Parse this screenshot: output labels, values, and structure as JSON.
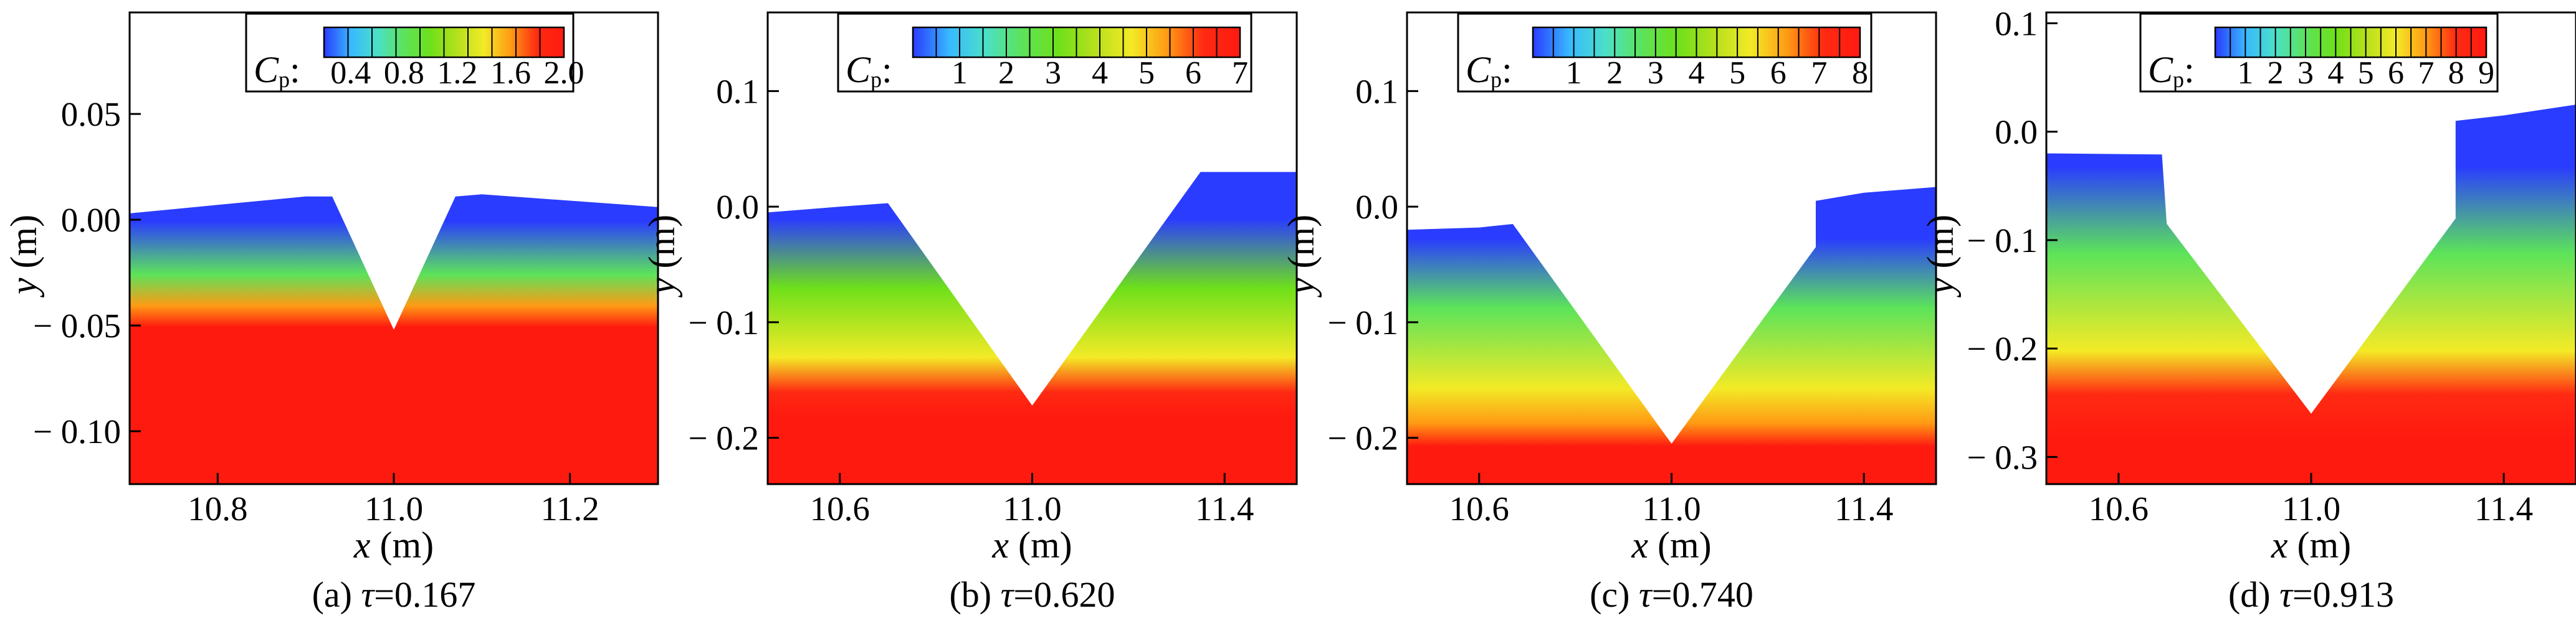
{
  "chart_data": [
    {
      "type": "heatmap",
      "caption": "(a) τ=0.167",
      "caption_prefix": "(a) ",
      "caption_symbol": "τ",
      "caption_value": "=0.167",
      "xlabel_var": "x",
      "xlabel_unit": " (m)",
      "ylabel_var": "y",
      "ylabel_unit": " (m)",
      "xlim": [
        10.7,
        11.3
      ],
      "ylim": [
        -0.125,
        0.098
      ],
      "xticks": [
        10.8,
        11.0,
        11.2
      ],
      "xtick_labels": [
        "10.8",
        "11.0",
        "11.2"
      ],
      "yticks": [
        0.05,
        0.0,
        -0.05,
        -0.1
      ],
      "ytick_labels": [
        "0.05",
        "0.00",
        "− 0.05",
        "− 0.10"
      ],
      "colorbar_title": "C",
      "colorbar_subscript": "p",
      "colorbar_range": [
        0.2,
        2.0
      ],
      "colorbar_ticks": [
        0.4,
        0.8,
        1.2,
        1.6,
        2.0
      ],
      "colorbar_tick_labels": [
        "0.4",
        "0.8",
        "1.2",
        "1.6",
        "2.0"
      ],
      "free_surface": [
        [
          10.7,
          0.003
        ],
        [
          10.8,
          0.007
        ],
        [
          10.9,
          0.011
        ],
        [
          10.93,
          0.011
        ],
        [
          11.0,
          -0.052
        ],
        [
          11.07,
          0.011
        ],
        [
          11.1,
          0.012
        ],
        [
          11.2,
          0.009
        ],
        [
          11.3,
          0.006
        ]
      ],
      "trough": {
        "left_top": [
          10.9,
          0.011
        ],
        "bottom": [
          11.0,
          -0.052
        ],
        "right_top": [
          11.1,
          0.012
        ]
      },
      "cp_depth_profile": [
        [
          0.0,
          0.2
        ],
        [
          0.025,
          0.8
        ],
        [
          0.04,
          1.5
        ],
        [
          0.05,
          2.0
        ]
      ]
    },
    {
      "type": "heatmap",
      "caption": "(b) τ=0.620",
      "caption_prefix": "(b) ",
      "caption_symbol": "τ",
      "caption_value": "=0.620",
      "xlabel_var": "x",
      "xlabel_unit": " (m)",
      "ylabel_var": "y",
      "ylabel_unit": " (m)",
      "xlim": [
        10.45,
        11.55
      ],
      "ylim": [
        -0.24,
        0.168
      ],
      "xticks": [
        10.6,
        11.0,
        11.4
      ],
      "xtick_labels": [
        "10.6",
        "11.0",
        "11.4"
      ],
      "yticks": [
        0.1,
        0.0,
        -0.1,
        -0.2
      ],
      "ytick_labels": [
        "0.1",
        "0.0",
        "− 0.1",
        "− 0.2"
      ],
      "colorbar_title": "C",
      "colorbar_subscript": "p",
      "colorbar_range": [
        0.0,
        7.0
      ],
      "colorbar_ticks": [
        1,
        2,
        3,
        4,
        5,
        6,
        7
      ],
      "colorbar_tick_labels": [
        "1",
        "2",
        "3",
        "4",
        "5",
        "6",
        "7"
      ],
      "free_surface": [
        [
          10.45,
          -0.005
        ],
        [
          10.6,
          0.0
        ],
        [
          10.7,
          0.003
        ],
        [
          11.0,
          -0.172
        ],
        [
          11.35,
          0.03
        ],
        [
          11.55,
          0.03
        ]
      ],
      "trough": {
        "left_top": [
          10.7,
          0.003
        ],
        "bottom": [
          11.0,
          -0.172
        ],
        "right_top": [
          11.34,
          0.03
        ]
      },
      "cp_depth_profile": [
        [
          0.0,
          0.0
        ],
        [
          0.06,
          3.0
        ],
        [
          0.12,
          4.5
        ],
        [
          0.15,
          6.0
        ],
        [
          0.17,
          7.0
        ]
      ]
    },
    {
      "type": "heatmap",
      "caption": "(c) τ=0.740",
      "caption_prefix": "(c) ",
      "caption_symbol": "τ",
      "caption_value": "=0.740",
      "xlabel_var": "x",
      "xlabel_unit": " (m)",
      "ylabel_var": "y",
      "ylabel_unit": " (m)",
      "xlim": [
        10.45,
        11.55
      ],
      "ylim": [
        -0.24,
        0.168
      ],
      "xticks": [
        10.6,
        11.0,
        11.4
      ],
      "xtick_labels": [
        "10.6",
        "11.0",
        "11.4"
      ],
      "yticks": [
        0.1,
        0.0,
        -0.1,
        -0.2
      ],
      "ytick_labels": [
        "0.1",
        "0.0",
        "− 0.1",
        "− 0.2"
      ],
      "colorbar_title": "C",
      "colorbar_subscript": "p",
      "colorbar_range": [
        0.0,
        8.0
      ],
      "colorbar_ticks": [
        1,
        2,
        3,
        4,
        5,
        6,
        7,
        8
      ],
      "colorbar_tick_labels": [
        "1",
        "2",
        "3",
        "4",
        "5",
        "6",
        "7",
        "8"
      ],
      "free_surface": [
        [
          10.45,
          -0.02
        ],
        [
          10.6,
          -0.018
        ],
        [
          10.67,
          -0.015
        ],
        [
          11.0,
          -0.205
        ],
        [
          11.3,
          -0.035
        ],
        [
          11.3,
          0.005
        ],
        [
          11.4,
          0.012
        ],
        [
          11.55,
          0.017
        ]
      ],
      "trough": {
        "left_top": [
          10.67,
          -0.015
        ],
        "bottom": [
          11.0,
          -0.205
        ],
        "right_top": [
          11.3,
          -0.035
        ]
      },
      "cp_depth_profile": [
        [
          0.0,
          0.0
        ],
        [
          0.06,
          3.0
        ],
        [
          0.13,
          5.0
        ],
        [
          0.16,
          6.5
        ],
        [
          0.18,
          8.0
        ]
      ]
    },
    {
      "type": "heatmap",
      "caption": "(d) τ=0.913",
      "caption_prefix": "(d) ",
      "caption_symbol": "τ",
      "caption_value": "=0.913",
      "xlabel_var": "x",
      "xlabel_unit": " (m)",
      "ylabel_var": "y",
      "ylabel_unit": " (m)",
      "xlim": [
        10.45,
        11.55
      ],
      "ylim": [
        -0.325,
        0.11
      ],
      "xticks": [
        10.6,
        11.0,
        11.4
      ],
      "xtick_labels": [
        "10.6",
        "11.0",
        "11.4"
      ],
      "yticks": [
        0.1,
        0.0,
        -0.1,
        -0.2,
        -0.3
      ],
      "ytick_labels": [
        "0.1",
        "0.0",
        "− 0.1",
        "− 0.2",
        "− 0.3"
      ],
      "colorbar_title": "C",
      "colorbar_subscript": "p",
      "colorbar_range": [
        0.0,
        9.0
      ],
      "colorbar_ticks": [
        1,
        2,
        3,
        4,
        5,
        6,
        7,
        8,
        9
      ],
      "colorbar_tick_labels": [
        "1",
        "2",
        "3",
        "4",
        "5",
        "6",
        "7",
        "8",
        "9"
      ],
      "free_surface": [
        [
          10.45,
          -0.02
        ],
        [
          10.69,
          -0.021
        ],
        [
          10.7,
          -0.085
        ],
        [
          11.0,
          -0.26
        ],
        [
          11.3,
          -0.08
        ],
        [
          11.3,
          0.01
        ],
        [
          11.4,
          0.015
        ],
        [
          11.55,
          0.025
        ]
      ],
      "trough": {
        "left_top": [
          10.7,
          -0.085
        ],
        "bottom": [
          11.0,
          -0.26
        ],
        "right_top": [
          11.3,
          -0.08
        ]
      },
      "cp_depth_profile": [
        [
          0.0,
          0.0
        ],
        [
          0.08,
          3.0
        ],
        [
          0.17,
          5.5
        ],
        [
          0.21,
          7.5
        ],
        [
          0.25,
          9.0
        ]
      ]
    }
  ],
  "colormap": {
    "name": "rainbow",
    "stops": [
      "#2a3cff",
      "#38b8ff",
      "#4be0c8",
      "#5ce35a",
      "#6ee01a",
      "#b6e01c",
      "#f3ea26",
      "#ff9a14",
      "#ff2a12",
      "#ff1a10"
    ]
  }
}
